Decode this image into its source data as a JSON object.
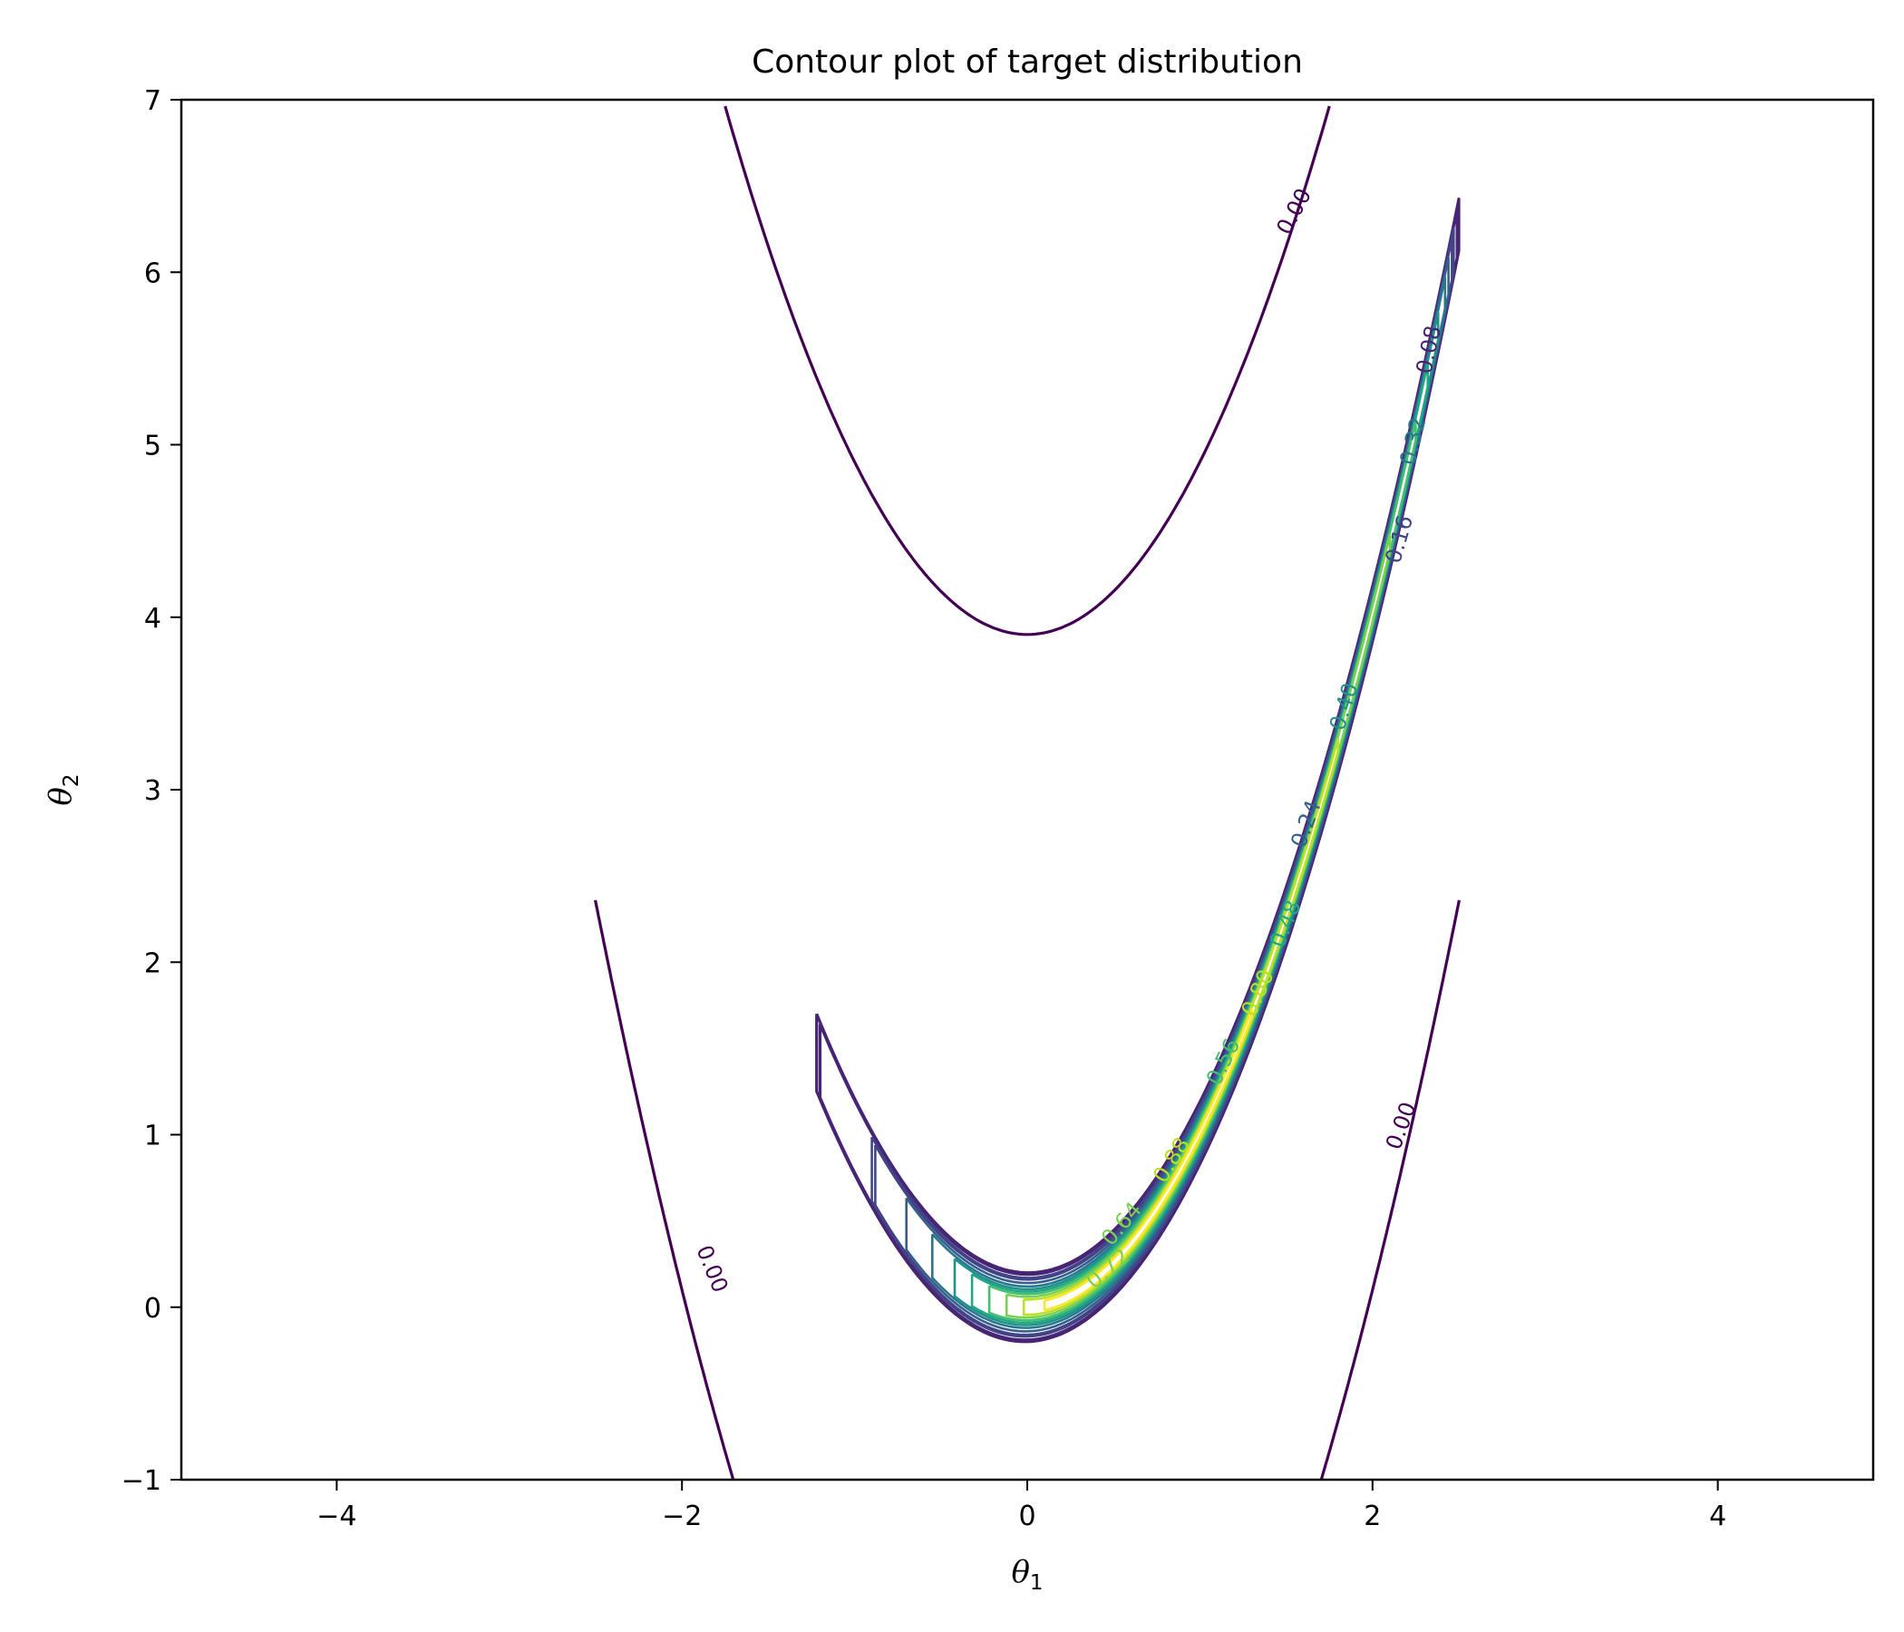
{
  "chart_data": {
    "type": "contour",
    "title": "Contour plot of target distribution",
    "xlabel": {
      "symbol": "θ",
      "sub": "1"
    },
    "ylabel": {
      "symbol": "θ",
      "sub": "2"
    },
    "xlim": [
      -4.9,
      4.9
    ],
    "ylim": [
      -1,
      7
    ],
    "xticks": [
      -4,
      -2,
      0,
      2,
      4
    ],
    "xtick_labels": [
      "−4",
      "−2",
      "0",
      "2",
      "4"
    ],
    "yticks": [
      -1,
      0,
      1,
      2,
      3,
      4,
      5,
      6,
      7
    ],
    "ytick_labels": [
      "−1",
      "0",
      "1",
      "2",
      "3",
      "4",
      "5",
      "6",
      "7"
    ],
    "grid": false,
    "domain_x": [
      -2.5,
      2.5
    ],
    "function": "banana-shaped density peaked along θ2 = θ1²",
    "levels": [
      0.0,
      0.08,
      0.16,
      0.24,
      0.32,
      0.4,
      0.48,
      0.56,
      0.64,
      0.72,
      0.8,
      0.88
    ],
    "level_colors": [
      "#440154",
      "#482475",
      "#414487",
      "#355f8d",
      "#2a788e",
      "#21918c",
      "#22a884",
      "#44bf70",
      "#7ad151",
      "#bddf26",
      "#fde725",
      "#fde725"
    ],
    "contour_labels": [
      {
        "text": "0.00",
        "x": 1.55,
        "y": 6.35,
        "rotation": -62,
        "color": "#440154"
      },
      {
        "text": "0.00",
        "x": -1.83,
        "y": 0.22,
        "rotation": 68,
        "color": "#440154"
      },
      {
        "text": "0.00",
        "x": 2.17,
        "y": 1.05,
        "rotation": -70,
        "color": "#440154"
      },
      {
        "text": "0.08",
        "x": 2.33,
        "y": 5.55,
        "rotation": -78,
        "color": "#482475"
      },
      {
        "text": "0.16",
        "x": 2.16,
        "y": 4.45,
        "rotation": -74,
        "color": "#414487"
      },
      {
        "text": "0.32",
        "x": 2.24,
        "y": 5.02,
        "rotation": -76,
        "color": "#2a788e"
      },
      {
        "text": "0.40",
        "x": 1.84,
        "y": 3.48,
        "rotation": -72,
        "color": "#21918c"
      },
      {
        "text": "0.24",
        "x": 1.62,
        "y": 2.8,
        "rotation": -70,
        "color": "#355f8d"
      },
      {
        "text": "0.48",
        "x": 1.5,
        "y": 2.22,
        "rotation": -68,
        "color": "#22a884"
      },
      {
        "text": "0.80",
        "x": 1.34,
        "y": 1.82,
        "rotation": -66,
        "color": "#bddf26"
      },
      {
        "text": "0.56",
        "x": 1.14,
        "y": 1.42,
        "rotation": -64,
        "color": "#44bf70"
      },
      {
        "text": "0.88",
        "x": 0.84,
        "y": 0.85,
        "rotation": -58,
        "color": "#bddf26"
      },
      {
        "text": "0.64",
        "x": 0.55,
        "y": 0.48,
        "rotation": -50,
        "color": "#7ad151"
      },
      {
        "text": "0.72",
        "x": 0.47,
        "y": 0.22,
        "rotation": -40,
        "color": "#7ad151"
      }
    ]
  }
}
